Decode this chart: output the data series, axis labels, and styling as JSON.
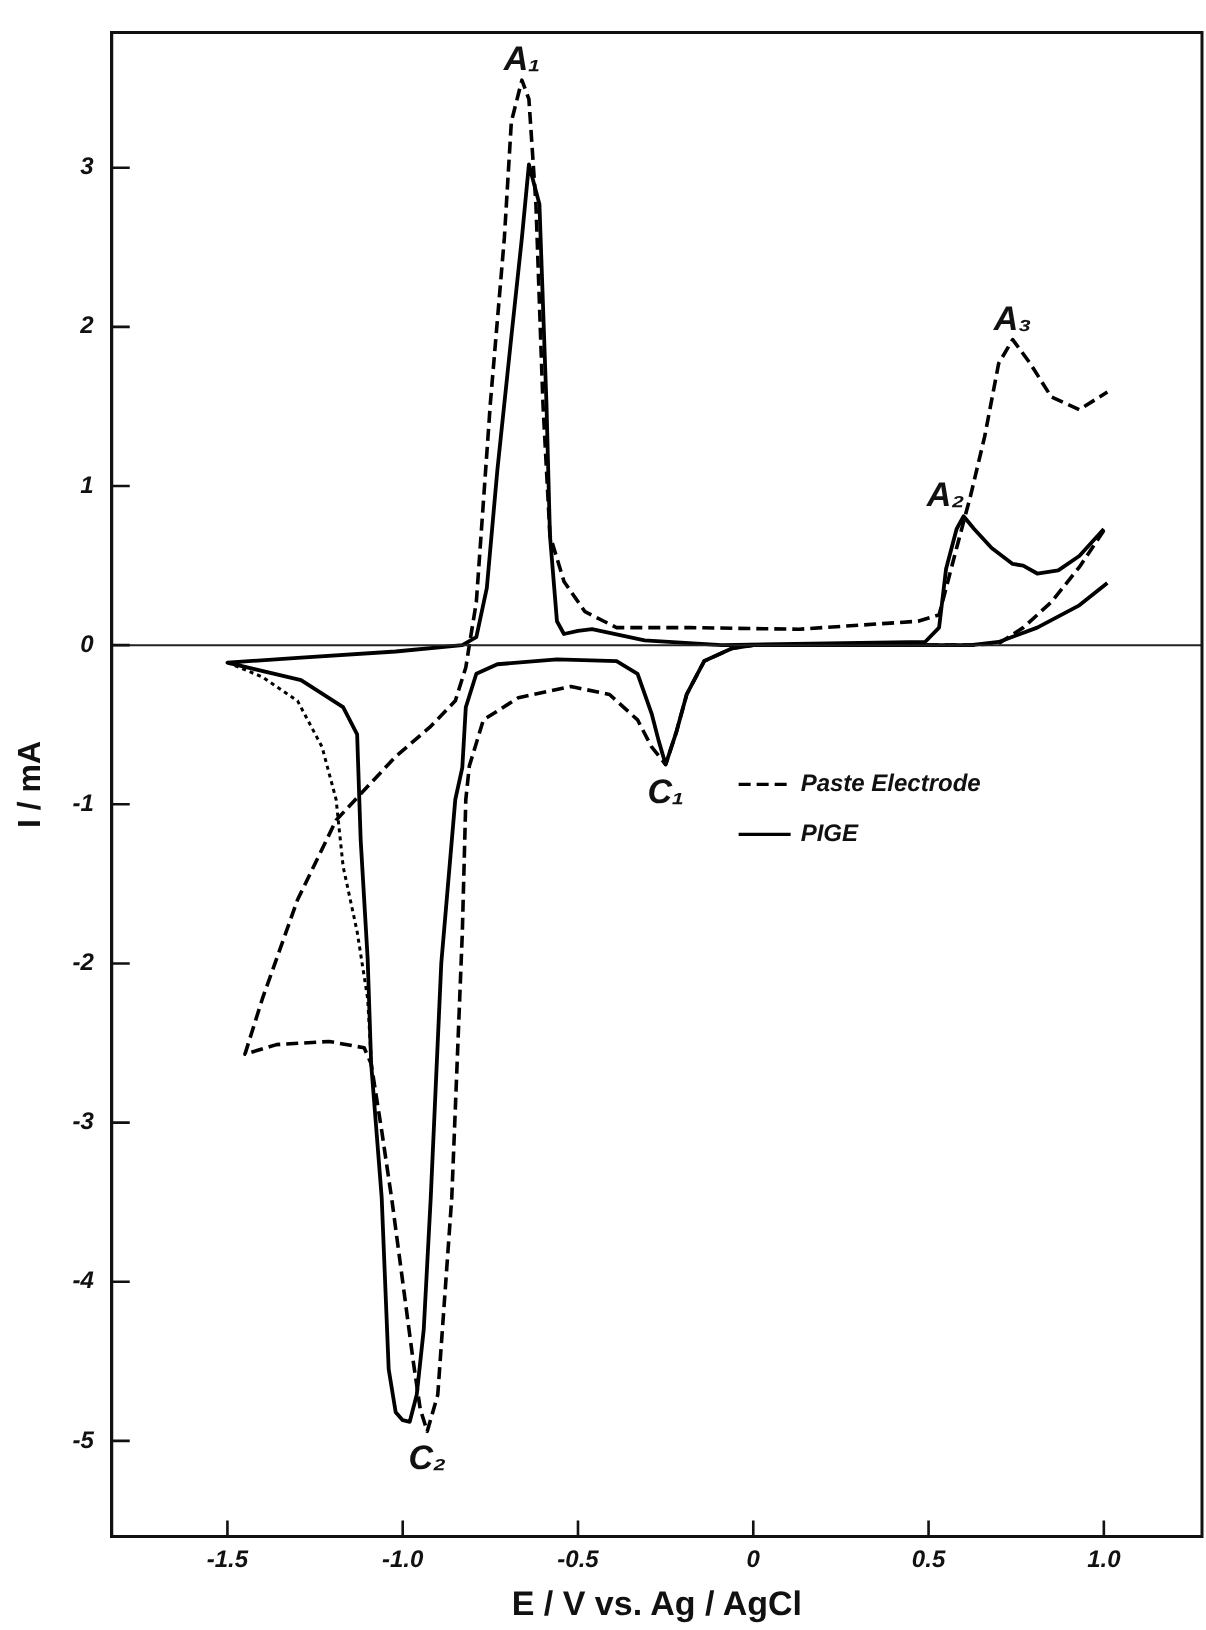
{
  "chart_data": {
    "type": "line",
    "xlabel": "E / V vs. Ag / AgCl",
    "ylabel": "I / mA",
    "xlim": [
      -1.83,
      1.28
    ],
    "ylim": [
      -5.6,
      3.85
    ],
    "xticks": [
      -1.5,
      {
        "value": -1,
        "label": "-1.0"
      },
      -0.5,
      0,
      0.5,
      {
        "value": 1,
        "label": "1.0"
      }
    ],
    "yticks": [
      -5,
      -4,
      -3,
      -2,
      -1,
      0,
      1,
      2,
      3
    ],
    "grid": false,
    "legend": "right",
    "ref_lines": [
      {
        "axis": "y",
        "value": 0
      }
    ],
    "annotations": [
      {
        "text": "A₁",
        "x": -0.66,
        "y": 3.55
      },
      {
        "text": "A₂",
        "x": 0.6,
        "y": 0.81
      },
      {
        "text": "A₃",
        "x": 0.74,
        "y": 1.92
      },
      {
        "text": "C₁",
        "x": -0.25,
        "y": -0.75
      },
      {
        "text": "C₂",
        "x": -0.93,
        "y": -4.94
      }
    ],
    "series": [
      {
        "name": "Paste Electrode",
        "color": "#000000",
        "line_style": "dashed",
        "x": [
          1.0,
          0.93,
          0.85,
          0.77,
          0.7,
          0.62,
          0.3,
          0.0,
          -0.06,
          -0.14,
          -0.19,
          -0.22,
          -0.25,
          -0.29,
          -0.33,
          -0.41,
          -0.52,
          -0.67,
          -0.77,
          -0.81,
          -0.82,
          -0.83,
          -0.86,
          -0.9,
          -0.93,
          -0.95,
          -0.97,
          -1.0,
          -1.03,
          -1.06,
          -1.09,
          -1.11,
          -1.21,
          -1.36,
          -1.45,
          -1.4,
          -1.3,
          -1.19,
          -1.02,
          -0.92,
          -0.85,
          -0.82,
          -0.81,
          -0.79,
          -0.75,
          -0.71,
          -0.69,
          -0.66,
          -0.64,
          -0.62,
          -0.6,
          -0.58,
          -0.54,
          -0.48,
          -0.39,
          -0.18,
          0.13,
          0.47,
          0.53,
          0.58,
          0.62,
          0.66,
          0.7,
          0.74,
          0.79,
          0.85,
          0.93,
          1.01
        ],
        "values": [
          0.72,
          0.49,
          0.27,
          0.11,
          0.01,
          0.0,
          0.0,
          0.0,
          -0.02,
          -0.1,
          -0.31,
          -0.55,
          -0.75,
          -0.64,
          -0.47,
          -0.31,
          -0.26,
          -0.33,
          -0.47,
          -0.76,
          -0.97,
          -1.81,
          -3.47,
          -4.71,
          -4.94,
          -4.8,
          -4.5,
          -4.0,
          -3.5,
          -3.05,
          -2.63,
          -2.53,
          -2.49,
          -2.51,
          -2.57,
          -2.22,
          -1.6,
          -1.1,
          -0.7,
          -0.51,
          -0.35,
          -0.14,
          0.0,
          0.27,
          1.52,
          2.56,
          3.29,
          3.55,
          3.43,
          2.77,
          1.52,
          0.69,
          0.4,
          0.21,
          0.11,
          0.11,
          0.1,
          0.15,
          0.19,
          0.61,
          0.94,
          1.31,
          1.77,
          1.92,
          1.77,
          1.56,
          1.48,
          1.59
        ]
      },
      {
        "name": "PIGE",
        "color": "#000000",
        "line_style": "solid",
        "x": [
          1.01,
          0.93,
          0.81,
          0.7,
          0.62,
          0.3,
          0.0,
          -0.06,
          -0.14,
          -0.19,
          -0.22,
          -0.25,
          -0.27,
          -0.29,
          -0.33,
          -0.39,
          -0.56,
          -0.73,
          -0.79,
          -0.82,
          -0.83,
          -0.85,
          -0.89,
          -0.92,
          -0.94,
          -0.96,
          -0.98,
          -1.0,
          -1.02,
          -1.04,
          -1.06,
          -1.09,
          -1.1,
          -1.12,
          -1.13,
          -1.17,
          -1.29,
          -1.5,
          -1.3,
          -1.02,
          -0.83,
          -0.79,
          -0.76,
          -0.73,
          -0.69,
          -0.66,
          -0.64,
          -0.61,
          -0.59,
          -0.58,
          -0.56,
          -0.54,
          -0.5,
          -0.46,
          -0.31,
          -0.09,
          0.49,
          0.53,
          0.55,
          0.58,
          0.6,
          0.63,
          0.68,
          0.74,
          0.77,
          0.81,
          0.87,
          0.93,
          1.0
        ],
        "values": [
          0.39,
          0.25,
          0.11,
          0.02,
          0.0,
          0.0,
          0.0,
          -0.02,
          -0.1,
          -0.31,
          -0.55,
          -0.75,
          -0.6,
          -0.43,
          -0.18,
          -0.1,
          -0.09,
          -0.12,
          -0.18,
          -0.39,
          -0.77,
          -0.97,
          -2.0,
          -3.47,
          -4.3,
          -4.71,
          -4.88,
          -4.87,
          -4.82,
          -4.55,
          -3.47,
          -2.63,
          -1.97,
          -1.22,
          -0.56,
          -0.39,
          -0.22,
          -0.11,
          -0.08,
          -0.04,
          0.0,
          0.05,
          0.36,
          1.1,
          1.94,
          2.56,
          3.02,
          2.77,
          1.52,
          0.69,
          0.15,
          0.07,
          0.09,
          0.1,
          0.03,
          0.0,
          0.02,
          0.11,
          0.48,
          0.73,
          0.81,
          0.73,
          0.61,
          0.51,
          0.5,
          0.45,
          0.47,
          0.56,
          0.73
        ]
      },
      {
        "color": "#000000",
        "line_style": "dotted",
        "x": [
          -1.5,
          -1.4,
          -1.3,
          -1.23,
          -1.19,
          -1.17,
          -1.13,
          -1.1,
          -1.09
        ],
        "values": [
          -0.11,
          -0.2,
          -0.35,
          -0.64,
          -0.97,
          -1.39,
          -1.8,
          -2.22,
          -2.6
        ]
      }
    ]
  }
}
